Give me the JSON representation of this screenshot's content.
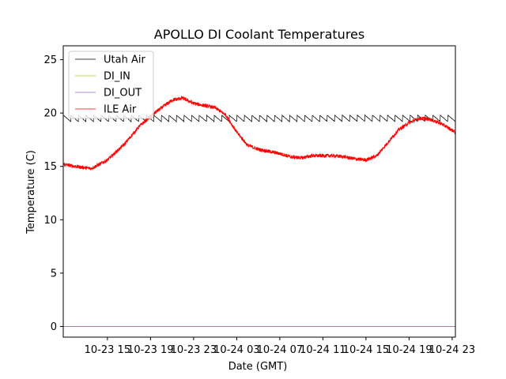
{
  "chart_data": {
    "type": "line",
    "title": "APOLLO DI Coolant Temperatures",
    "xlabel": "Date (GMT)",
    "ylabel": "Temperature (C)",
    "ylim": [
      -1.0,
      26.3
    ],
    "xlim_hours_from_10_23_00": [
      10.9,
      47.3
    ],
    "y_ticks": [
      0,
      5,
      10,
      15,
      20,
      25
    ],
    "x_ticks": [
      {
        "label": "10-23 15",
        "hour": 15
      },
      {
        "label": "10-23 19",
        "hour": 19
      },
      {
        "label": "10-23 23",
        "hour": 23
      },
      {
        "label": "10-24 03",
        "hour": 27
      },
      {
        "label": "10-24 07",
        "hour": 31
      },
      {
        "label": "10-24 11",
        "hour": 35
      },
      {
        "label": "10-24 15",
        "hour": 39
      },
      {
        "label": "10-24 19",
        "hour": 43
      },
      {
        "label": "10-24 23",
        "hour": 47
      }
    ],
    "legend_position": "top-left",
    "series": [
      {
        "name": "Utah Air",
        "color": "#000000",
        "pattern": "sawtooth",
        "sawtooth_low": 19.2,
        "sawtooth_high": 19.8,
        "period_hours": 0.7,
        "x": [
          10.9,
          47.3
        ],
        "y": [
          19.5,
          19.5
        ]
      },
      {
        "name": "DI_IN",
        "color": "#bcbd22",
        "x": [
          10.9,
          47.3
        ],
        "y": [
          0.0,
          0.0
        ]
      },
      {
        "name": "DI_OUT",
        "color": "#9467bd",
        "x": [
          10.9,
          47.3
        ],
        "y": [
          0.0,
          0.0
        ]
      },
      {
        "name": "ILE Air",
        "color": "#ff0000",
        "noisy": true,
        "x": [
          10.9,
          12.0,
          13.5,
          15.0,
          16.5,
          18.0,
          19.5,
          21.0,
          22.0,
          23.0,
          24.0,
          25.0,
          26.0,
          27.0,
          28.0,
          29.0,
          30.0,
          31.0,
          32.0,
          33.0,
          34.0,
          35.0,
          36.0,
          37.0,
          38.0,
          39.0,
          40.0,
          41.0,
          42.0,
          43.0,
          44.0,
          45.0,
          46.0,
          47.3
        ],
        "y": [
          15.2,
          15.0,
          14.8,
          15.6,
          17.0,
          18.8,
          20.1,
          21.2,
          21.4,
          20.9,
          20.7,
          20.5,
          19.8,
          18.2,
          17.0,
          16.6,
          16.4,
          16.2,
          15.9,
          15.8,
          16.0,
          16.0,
          16.0,
          15.9,
          15.7,
          15.6,
          16.0,
          17.2,
          18.4,
          19.1,
          19.5,
          19.4,
          19.0,
          18.2
        ]
      }
    ]
  }
}
